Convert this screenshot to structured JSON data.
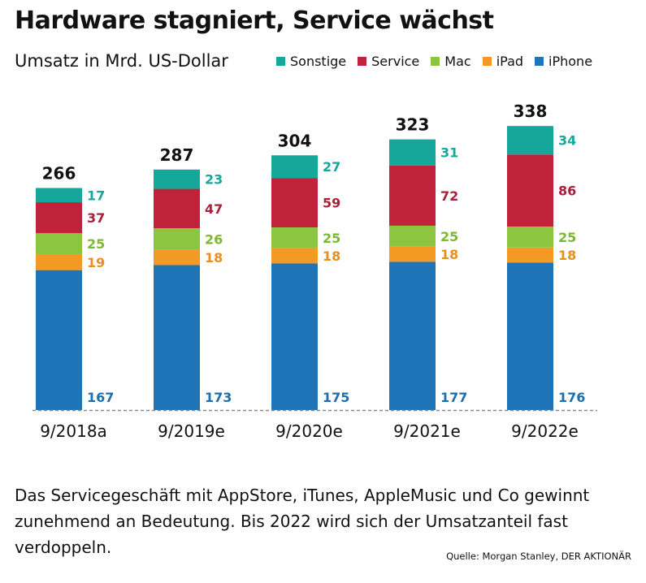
{
  "title": "Hardware stagniert, Service wächst",
  "subtitle": "Umsatz in Mrd. US-Dollar",
  "caption": "Das Servicegeschäft mit AppStore, iTunes, AppleMusic und Co gewinnt zunehmend an Bedeutung. Bis 2022 wird sich der Umsatzanteil fast verdoppeln.",
  "source": "Quelle: Morgan Stanley, DER AKTIONÄR",
  "legend": [
    {
      "label": "Sonstige",
      "color": "#15a89a"
    },
    {
      "label": "Service",
      "color": "#c0223b"
    },
    {
      "label": "Mac",
      "color": "#8cc640"
    },
    {
      "label": "iPad",
      "color": "#f39a25"
    },
    {
      "label": "iPhone",
      "color": "#1f73b7"
    }
  ],
  "chart_data": {
    "type": "bar",
    "stacked": true,
    "categories": [
      "9/2018a",
      "9/2019e",
      "9/2020e",
      "9/2021e",
      "9/2022e"
    ],
    "totals": [
      266,
      287,
      304,
      323,
      338
    ],
    "series": [
      {
        "name": "iPhone",
        "color": "#1f73b7",
        "label_color": "#1f6fae",
        "values": [
          167,
          173,
          175,
          177,
          176
        ]
      },
      {
        "name": "iPad",
        "color": "#f39a25",
        "label_color": "#e8901e",
        "values": [
          19,
          18,
          18,
          18,
          18
        ]
      },
      {
        "name": "Mac",
        "color": "#8cc640",
        "label_color": "#7cb832",
        "values": [
          25,
          26,
          25,
          25,
          25
        ]
      },
      {
        "name": "Service",
        "color": "#c0223b",
        "label_color": "#a8203a",
        "values": [
          37,
          47,
          59,
          72,
          86
        ]
      },
      {
        "name": "Sonstige",
        "color": "#15a89a",
        "label_color": "#15a89a",
        "values": [
          17,
          23,
          27,
          31,
          34
        ]
      }
    ],
    "ylim": [
      0,
      338
    ],
    "grid": false,
    "legend_position": "top-right"
  }
}
